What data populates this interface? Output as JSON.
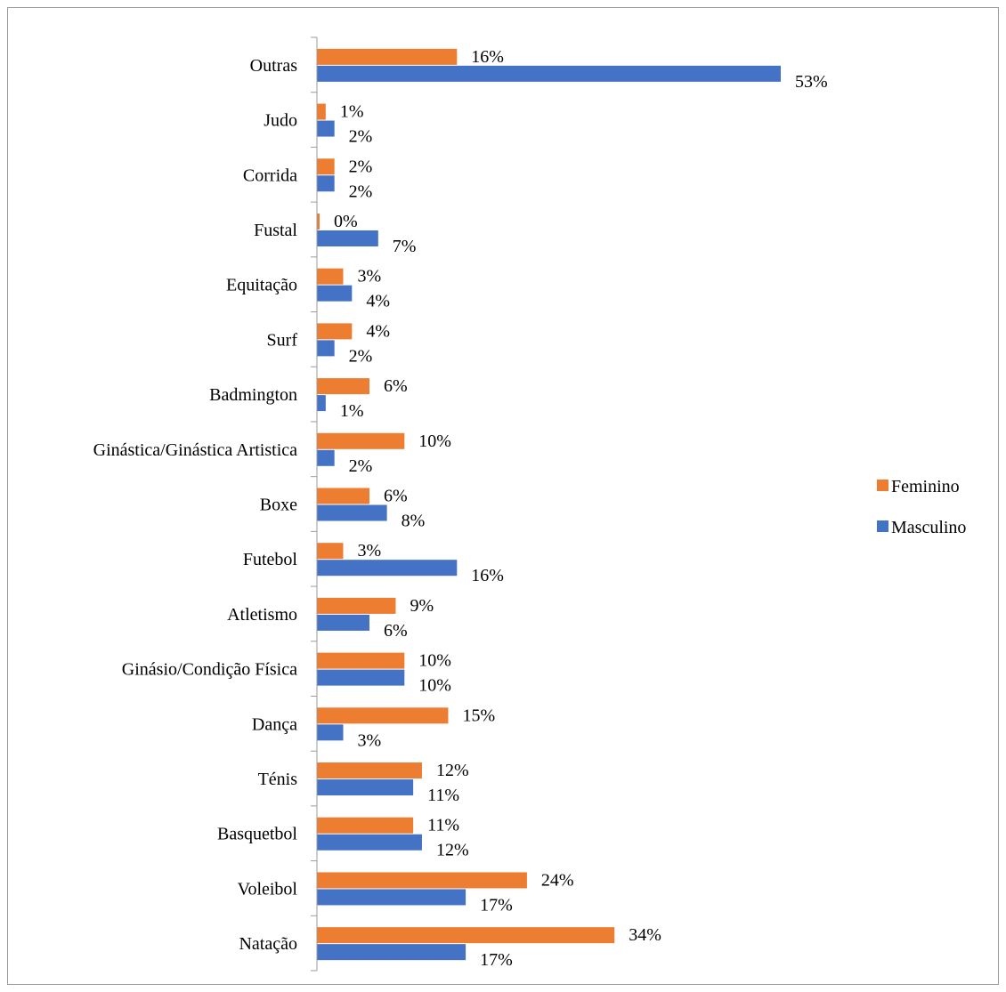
{
  "chart_data": {
    "type": "bar",
    "orientation": "horizontal",
    "categories": [
      "Natação",
      "Voleibol",
      "Basquetbol",
      "Ténis",
      "Dança",
      "Ginásio/Condição Física",
      "Atletismo",
      "Futebol",
      "Boxe",
      "Ginástica/Ginástica Artistica",
      "Badmington",
      "Surf",
      "Equitação",
      "Fustal",
      "Corrida",
      "Judo",
      "Outras"
    ],
    "series": [
      {
        "name": "Feminino",
        "color": "#ED7D31",
        "values": [
          34,
          24,
          11,
          12,
          15,
          10,
          9,
          3,
          6,
          10,
          6,
          4,
          3,
          0,
          2,
          1,
          16
        ],
        "labels": [
          "34%",
          "24%",
          "11%",
          "12%",
          "15%",
          "10%",
          "9%",
          "3%",
          "6%",
          "10%",
          "6%",
          "4%",
          "3%",
          "0%",
          "2%",
          "1%",
          "16%"
        ]
      },
      {
        "name": "Masculino",
        "color": "#4472C4",
        "values": [
          17,
          17,
          12,
          11,
          3,
          10,
          6,
          16,
          8,
          2,
          1,
          2,
          4,
          7,
          2,
          2,
          53
        ],
        "labels": [
          "17%",
          "17%",
          "12%",
          "11%",
          "3%",
          "10%",
          "6%",
          "16%",
          "8%",
          "2%",
          "1%",
          "2%",
          "4%",
          "7%",
          "2%",
          "2%",
          "53%"
        ]
      }
    ],
    "xlim": [
      0,
      55
    ],
    "grid": false,
    "legend_position": "right"
  }
}
